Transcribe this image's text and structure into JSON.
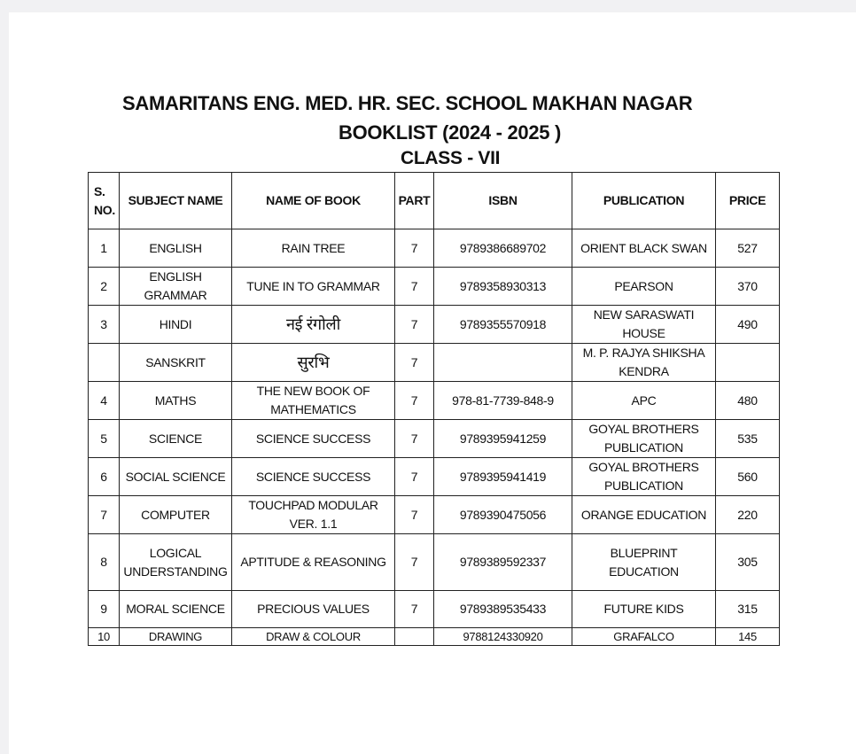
{
  "title": {
    "line1": "SAMARITANS ENG. MED. HR. SEC. SCHOOL MAKHAN NAGAR",
    "line2": "BOOKLIST (2024 - 2025 )",
    "line3": "CLASS - VII"
  },
  "table": {
    "headers": [
      "S. NO.",
      "SUBJECT NAME",
      "NAME OF BOOK",
      "PART",
      "ISBN",
      "PUBLICATION",
      "PRICE"
    ],
    "rows": [
      [
        "1",
        "ENGLISH",
        "RAIN TREE",
        "7",
        "9789386689702",
        "ORIENT BLACK SWAN",
        "527"
      ],
      [
        "2",
        "ENGLISH GRAMMAR",
        "TUNE IN TO GRAMMAR",
        "7",
        "9789358930313",
        "PEARSON",
        "370"
      ],
      [
        "3",
        "HINDI",
        "नई रंगोली",
        "7",
        "9789355570918",
        "NEW SARASWATI HOUSE",
        "490"
      ],
      [
        "",
        "SANSKRIT",
        "सुरभि",
        "7",
        "",
        "M. P. RAJYA SHIKSHA KENDRA",
        ""
      ],
      [
        "4",
        "MATHS",
        "THE NEW BOOK OF MATHEMATICS",
        "7",
        "978-81-7739-848-9",
        "APC",
        "480"
      ],
      [
        "5",
        "SCIENCE",
        "SCIENCE SUCCESS",
        "7",
        "9789395941259",
        "GOYAL BROTHERS PUBLICATION",
        "535"
      ],
      [
        "6",
        "SOCIAL SCIENCE",
        "SCIENCE SUCCESS",
        "7",
        "9789395941419",
        "GOYAL BROTHERS PUBLICATION",
        "560"
      ],
      [
        "7",
        "COMPUTER",
        "TOUCHPAD MODULAR VER. 1.1",
        "7",
        "9789390475056",
        "ORANGE EDUCATION",
        "220"
      ],
      [
        "8",
        "LOGICAL UNDERSTANDING",
        "APTITUDE & REASONING",
        "7",
        "9789389592337",
        "BLUEPRINT EDUCATION",
        "305"
      ],
      [
        "9",
        "MORAL SCIENCE",
        "PRECIOUS VALUES",
        "7",
        "9789389535433",
        "FUTURE KIDS",
        "315"
      ],
      [
        "10",
        "DRAWING",
        "DRAW & COLOUR",
        "",
        "9788124330920",
        "GRAFALCO",
        "145"
      ]
    ]
  }
}
